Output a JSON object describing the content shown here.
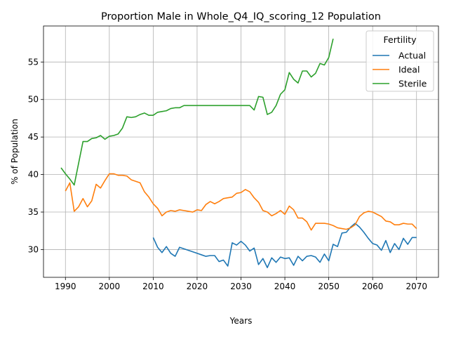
{
  "chart_data": {
    "type": "line",
    "title": "Proportion Male in Whole_Q4_IQ_scoring_12 Population",
    "xlabel": "Years",
    "ylabel": "% of Population",
    "xlim": [
      1985,
      2075
    ],
    "ylim": [
      26.3,
      59.8
    ],
    "xticks": [
      1990,
      2000,
      2010,
      2020,
      2030,
      2040,
      2050,
      2060,
      2070
    ],
    "yticks": [
      30,
      35,
      40,
      45,
      50,
      55
    ],
    "grid": true,
    "legend": {
      "title": "Fertility",
      "placement": "top-right"
    },
    "series": [
      {
        "name": "Actual",
        "color": "#1f77b4",
        "x": [
          2010,
          2011,
          2012,
          2013,
          2014,
          2015,
          2016,
          2017,
          2018,
          2019,
          2020,
          2021,
          2022,
          2023,
          2024,
          2025,
          2026,
          2027,
          2028,
          2029,
          2030,
          2031,
          2032,
          2033,
          2034,
          2035,
          2036,
          2037,
          2038,
          2039,
          2040,
          2041,
          2042,
          2043,
          2044,
          2045,
          2046,
          2047,
          2048,
          2049,
          2050,
          2051,
          2052,
          2053,
          2054,
          2055,
          2056,
          2057,
          2058,
          2059,
          2060,
          2061,
          2062,
          2063,
          2064,
          2065,
          2066,
          2067,
          2068,
          2069,
          2070
        ],
        "y": [
          31.6,
          30.3,
          29.6,
          30.4,
          29.5,
          29.1,
          30.3,
          30.1,
          29.9,
          29.7,
          29.5,
          29.3,
          29.1,
          29.2,
          29.2,
          28.4,
          28.6,
          27.8,
          30.9,
          30.6,
          31.1,
          30.6,
          29.8,
          30.2,
          28.0,
          28.8,
          27.6,
          28.9,
          28.3,
          29.0,
          28.8,
          28.9,
          27.9,
          29.1,
          28.5,
          29.1,
          29.2,
          29.0,
          28.3,
          29.4,
          28.5,
          30.7,
          30.4,
          32.2,
          32.3,
          33.0,
          33.5,
          33.0,
          32.3,
          31.5,
          30.8,
          30.6,
          29.9,
          31.2,
          29.6,
          30.8,
          30.0,
          31.5,
          30.7,
          31.6,
          31.6
        ]
      },
      {
        "name": "Ideal",
        "color": "#ff7f0e",
        "x": [
          1990,
          1991,
          1992,
          1993,
          1994,
          1995,
          1996,
          1997,
          1998,
          1999,
          2000,
          2001,
          2002,
          2003,
          2004,
          2005,
          2006,
          2007,
          2008,
          2009,
          2010,
          2011,
          2012,
          2013,
          2014,
          2015,
          2016,
          2017,
          2018,
          2019,
          2020,
          2021,
          2022,
          2023,
          2024,
          2025,
          2026,
          2027,
          2028,
          2029,
          2030,
          2031,
          2032,
          2033,
          2034,
          2035,
          2036,
          2037,
          2038,
          2039,
          2040,
          2041,
          2042,
          2043,
          2044,
          2045,
          2046,
          2047,
          2048,
          2049,
          2050,
          2051,
          2052,
          2053,
          2054,
          2055,
          2056,
          2057,
          2058,
          2059,
          2060,
          2061,
          2062,
          2063,
          2064,
          2065,
          2066,
          2067,
          2068,
          2069,
          2070
        ],
        "y": [
          37.8,
          38.9,
          35.1,
          35.7,
          36.8,
          35.7,
          36.5,
          38.7,
          38.2,
          39.2,
          40.1,
          40.1,
          39.9,
          39.9,
          39.8,
          39.3,
          39.1,
          38.9,
          37.7,
          37.0,
          36.1,
          35.5,
          34.5,
          35.0,
          35.2,
          35.1,
          35.3,
          35.2,
          35.1,
          35.0,
          35.3,
          35.2,
          36.0,
          36.4,
          36.1,
          36.4,
          36.8,
          36.9,
          37.0,
          37.5,
          37.6,
          38.0,
          37.7,
          36.9,
          36.3,
          35.2,
          35.0,
          34.5,
          34.8,
          35.2,
          34.7,
          35.8,
          35.3,
          34.2,
          34.2,
          33.7,
          32.6,
          33.5,
          33.5,
          33.5,
          33.4,
          33.2,
          32.9,
          32.8,
          32.7,
          32.9,
          33.3,
          34.4,
          34.9,
          35.1,
          35.0,
          34.7,
          34.4,
          33.8,
          33.7,
          33.3,
          33.3,
          33.5,
          33.4,
          33.4,
          32.8
        ]
      },
      {
        "name": "Sterile",
        "color": "#2ca02c",
        "x": [
          1989,
          1990,
          1991,
          1992,
          1993,
          1994,
          1995,
          1996,
          1997,
          1998,
          1999,
          2000,
          2001,
          2002,
          2003,
          2004,
          2005,
          2006,
          2007,
          2008,
          2009,
          2010,
          2011,
          2012,
          2013,
          2014,
          2015,
          2016,
          2017,
          2018,
          2019,
          2020,
          2021,
          2022,
          2023,
          2024,
          2025,
          2026,
          2027,
          2028,
          2029,
          2030,
          2031,
          2032,
          2033,
          2034,
          2035,
          2036,
          2037,
          2038,
          2039,
          2040,
          2041,
          2042,
          2043,
          2044,
          2045,
          2046,
          2047,
          2048,
          2049,
          2050,
          2051
        ],
        "y": [
          40.9,
          40.1,
          39.4,
          38.6,
          41.5,
          44.4,
          44.4,
          44.8,
          44.9,
          45.2,
          44.7,
          45.1,
          45.2,
          45.4,
          46.2,
          47.7,
          47.6,
          47.7,
          48.0,
          48.2,
          47.9,
          47.9,
          48.3,
          48.4,
          48.5,
          48.8,
          48.9,
          48.9,
          49.2,
          49.2,
          49.2,
          49.2,
          49.2,
          49.2,
          49.2,
          49.2,
          49.2,
          49.2,
          49.2,
          49.2,
          49.2,
          49.2,
          49.2,
          49.2,
          48.6,
          50.4,
          50.3,
          48.0,
          48.3,
          49.2,
          50.7,
          51.3,
          53.6,
          52.7,
          52.2,
          53.8,
          53.8,
          53.0,
          53.5,
          54.8,
          54.6,
          55.6,
          58.1
        ]
      }
    ]
  }
}
